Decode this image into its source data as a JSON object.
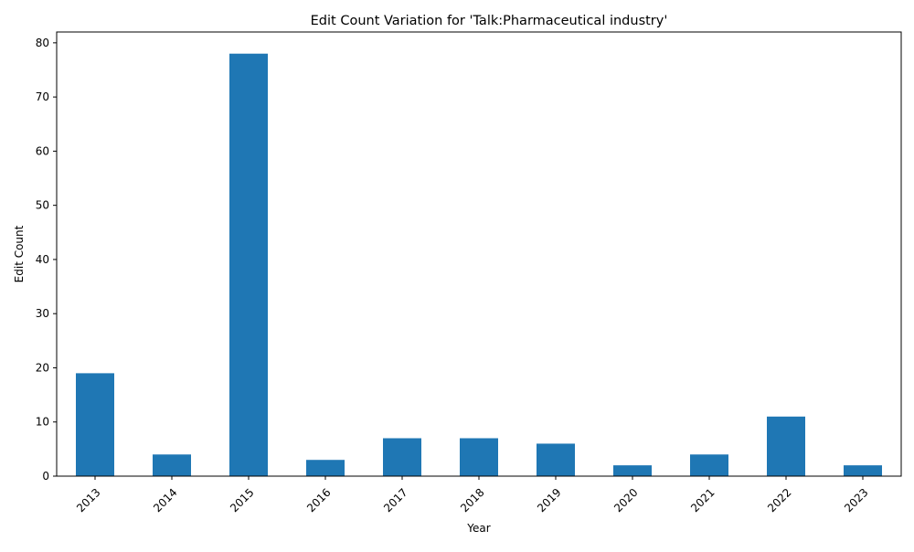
{
  "chart_data": {
    "type": "bar",
    "title": "Edit Count Variation for 'Talk:Pharmaceutical industry'",
    "xlabel": "Year",
    "ylabel": "Edit Count",
    "categories": [
      "2013",
      "2014",
      "2015",
      "2016",
      "2017",
      "2018",
      "2019",
      "2020",
      "2021",
      "2022",
      "2023"
    ],
    "values": [
      19,
      4,
      78,
      3,
      7,
      7,
      6,
      2,
      4,
      11,
      2
    ],
    "ylim": [
      0,
      82
    ],
    "yticks": [
      0,
      10,
      20,
      30,
      40,
      50,
      60,
      70,
      80
    ],
    "grid": false,
    "legend": "none",
    "bar_color": "#1f77b4",
    "xtick_rotation_deg": 45
  }
}
